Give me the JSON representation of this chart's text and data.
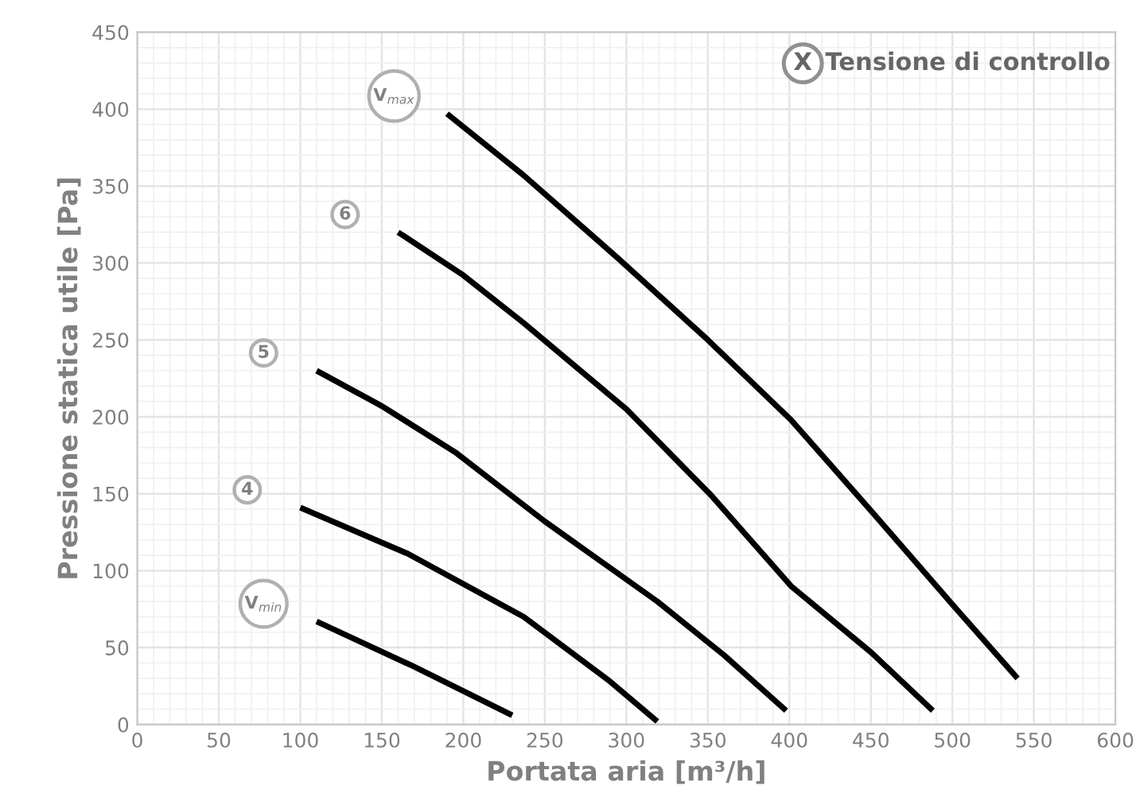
{
  "chart_data": {
    "type": "line",
    "xlabel": "Portata aria [m³/h]",
    "ylabel": "Pressione statica utile [Pa]",
    "annotations": [
      "X",
      "Tensione di controllo"
    ],
    "xlim": [
      0,
      600
    ],
    "xticks": [
      0,
      50,
      100,
      150,
      200,
      250,
      300,
      350,
      400,
      450,
      500,
      550,
      600
    ],
    "ylim": [
      0,
      450
    ],
    "yticks": [
      0,
      50,
      100,
      150,
      200,
      250,
      300,
      350,
      400,
      450
    ],
    "grid": true,
    "marker": "none",
    "line_style": "solid",
    "series": [
      {
        "name": "V$_{max}$",
        "color": "#000000",
        "x": [
          190,
          237,
          296,
          350,
          401,
          450,
          500,
          540
        ],
        "values": [
          397,
          357,
          302,
          250,
          198,
          139,
          78,
          30
        ]
      },
      {
        "name": "6",
        "color": "#000000",
        "x": [
          160,
          200,
          237,
          300,
          352,
          401,
          450,
          488
        ],
        "values": [
          320,
          292,
          261,
          205,
          149,
          90,
          47,
          9
        ]
      },
      {
        "name": "5",
        "color": "#000000",
        "x": [
          110,
          150,
          195,
          250,
          319,
          360,
          398
        ],
        "values": [
          230,
          207,
          177,
          132,
          80,
          45,
          9
        ]
      },
      {
        "name": "4",
        "color": "#000000",
        "x": [
          100,
          166,
          237,
          290,
          319
        ],
        "values": [
          141,
          111,
          70,
          28,
          2
        ]
      },
      {
        "name": "V$_{min}$",
        "color": "#000000",
        "x": [
          110,
          169,
          230
        ],
        "values": [
          67,
          38,
          6
        ]
      }
    ]
  }
}
